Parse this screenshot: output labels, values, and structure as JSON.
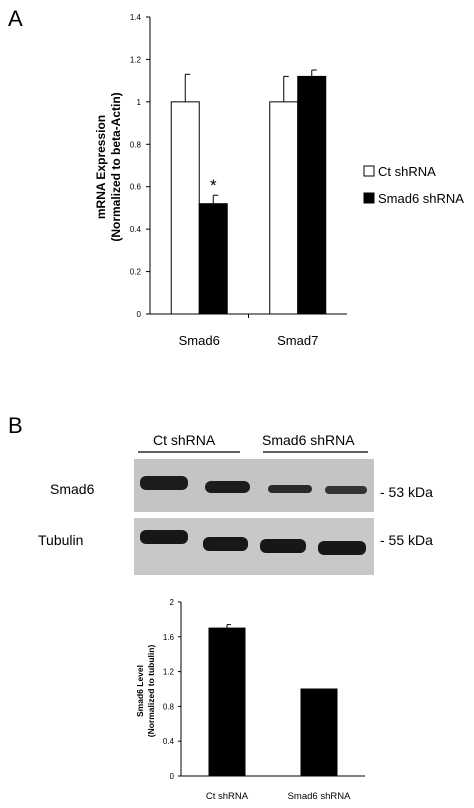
{
  "panels": {
    "a": "A",
    "b": "B"
  },
  "chart_data": [
    {
      "type": "bar",
      "ylabel_lines": [
        "mRNA Expression",
        "(Normalized to beta-Actin)"
      ],
      "ylim": [
        0,
        1.4
      ],
      "yticks": [
        "0",
        "0.2",
        "0.4",
        "0.6",
        "0.8",
        "1",
        "1.2",
        "1.4"
      ],
      "categories": [
        "Smad6",
        "Smad7"
      ],
      "series": [
        {
          "name": "Ct shRNA",
          "values": [
            1.0,
            1.0
          ],
          "errors": [
            0.13,
            0.12
          ],
          "color": "#ffffff"
        },
        {
          "name": "Smad6 shRNA",
          "values": [
            0.52,
            1.12
          ],
          "errors": [
            0.04,
            0.03
          ],
          "color": "#000000"
        }
      ],
      "annotations": [
        {
          "text": "*",
          "category": "Smad6",
          "series": "Smad6 shRNA"
        }
      ],
      "legend_position": "right"
    },
    {
      "type": "bar",
      "ylabel_lines": [
        "Smad6 Level",
        "(Normalized to tubulin)"
      ],
      "ylim": [
        0,
        2
      ],
      "yticks": [
        "0",
        "0.4",
        "0.8",
        "1.2",
        "1.6",
        "2"
      ],
      "categories": [
        "Ct shRNA",
        "Smad6 shRNA"
      ],
      "values": [
        1.7,
        1.0
      ],
      "errors": [
        0.04,
        0.0
      ],
      "color": "#000000"
    }
  ],
  "blot": {
    "group_labels": [
      "Ct shRNA",
      "Smad6 shRNA"
    ],
    "row_labels": [
      "Smad6",
      "Tubulin"
    ],
    "size_labels": [
      "- 53 kDa",
      "- 55 kDa"
    ]
  }
}
